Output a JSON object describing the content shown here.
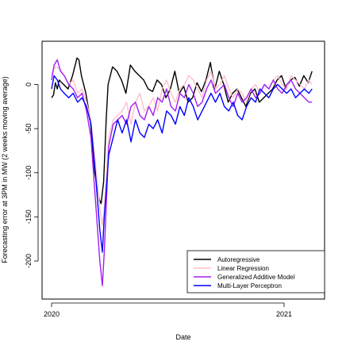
{
  "chart_data": {
    "type": "line",
    "title": "",
    "xlabel": "Date",
    "ylabel": "Forecasting error at 3PM in MW (2 weeks moving average)",
    "x_ticks": [
      "2020",
      "2021"
    ],
    "y_ticks": [
      "0",
      "-50",
      "-100",
      "-150",
      "-200"
    ],
    "y_tick_values": [
      0,
      -50,
      -100,
      -150,
      -200
    ],
    "xlim": [
      "2020-01-01",
      "2021-02-20"
    ],
    "ylim": [
      -235,
      40
    ],
    "grid": false,
    "legend_position": "bottom-right",
    "series": [
      {
        "name": "Autoregressive",
        "color": "#000000",
        "x": [
          "2020-01-01",
          "2020-01-04",
          "2020-01-07",
          "2020-01-10",
          "2020-01-13",
          "2020-01-20",
          "2020-01-27",
          "2020-02-03",
          "2020-02-10",
          "2020-02-13",
          "2020-02-17",
          "2020-02-24",
          "2020-03-02",
          "2020-03-09",
          "2020-03-16",
          "2020-03-19",
          "2020-03-23",
          "2020-03-27",
          "2020-03-30",
          "2020-04-06",
          "2020-04-13",
          "2020-04-20",
          "2020-04-27",
          "2020-05-04",
          "2020-05-11",
          "2020-05-18",
          "2020-05-25",
          "2020-06-01",
          "2020-06-08",
          "2020-06-15",
          "2020-06-22",
          "2020-06-29",
          "2020-07-06",
          "2020-07-13",
          "2020-07-20",
          "2020-07-27",
          "2020-08-03",
          "2020-08-10",
          "2020-08-17",
          "2020-08-24",
          "2020-08-31",
          "2020-09-07",
          "2020-09-14",
          "2020-09-21",
          "2020-09-28",
          "2020-10-05",
          "2020-10-12",
          "2020-10-19",
          "2020-10-26",
          "2020-11-02",
          "2020-11-09",
          "2020-11-16",
          "2020-11-23",
          "2020-11-30",
          "2020-12-07",
          "2020-12-14",
          "2020-12-21",
          "2020-12-28",
          "2021-01-04",
          "2021-01-11",
          "2021-01-18",
          "2021-01-25",
          "2021-02-01",
          "2021-02-08",
          "2021-02-14"
        ],
        "y": [
          -15,
          -12,
          2,
          -5,
          5,
          0,
          -5,
          10,
          30,
          28,
          10,
          -10,
          -40,
          -100,
          -130,
          -135,
          -110,
          -40,
          0,
          20,
          15,
          5,
          -10,
          22,
          15,
          10,
          5,
          -5,
          -8,
          5,
          0,
          -15,
          -5,
          15,
          -10,
          -2,
          -20,
          -15,
          2,
          -8,
          5,
          25,
          -5,
          15,
          0,
          -20,
          -10,
          -5,
          -15,
          -25,
          -10,
          -5,
          -20,
          -15,
          -10,
          -5,
          5,
          10,
          -5,
          5,
          8,
          -2,
          10,
          2,
          15
        ]
      },
      {
        "name": "Linear Regression",
        "color": "#ffc0cb",
        "x": [
          "2020-01-01",
          "2020-01-07",
          "2020-01-14",
          "2020-01-21",
          "2020-01-28",
          "2020-02-04",
          "2020-02-11",
          "2020-02-18",
          "2020-02-25",
          "2020-03-03",
          "2020-03-10",
          "2020-03-17",
          "2020-03-21",
          "2020-03-24",
          "2020-03-31",
          "2020-04-07",
          "2020-04-14",
          "2020-04-21",
          "2020-04-28",
          "2020-05-05",
          "2020-05-12",
          "2020-05-19",
          "2020-05-26",
          "2020-06-02",
          "2020-06-09",
          "2020-06-16",
          "2020-06-23",
          "2020-06-30",
          "2020-07-07",
          "2020-07-14",
          "2020-07-21",
          "2020-07-28",
          "2020-08-04",
          "2020-08-11",
          "2020-08-18",
          "2020-08-25",
          "2020-09-01",
          "2020-09-08",
          "2020-09-15",
          "2020-09-22",
          "2020-09-29",
          "2020-10-06",
          "2020-10-13",
          "2020-10-20",
          "2020-10-27",
          "2020-11-03",
          "2020-11-10",
          "2020-11-17",
          "2020-11-24",
          "2020-12-01",
          "2020-12-08",
          "2020-12-15",
          "2020-12-22",
          "2020-12-29",
          "2021-01-05",
          "2021-01-12",
          "2021-01-19",
          "2021-01-26",
          "2021-02-02",
          "2021-02-09",
          "2021-02-14"
        ],
        "y": [
          12,
          20,
          18,
          10,
          0,
          5,
          -10,
          -5,
          -20,
          -40,
          -90,
          -140,
          -160,
          -140,
          -60,
          -40,
          -35,
          -30,
          -20,
          -45,
          -20,
          -10,
          -30,
          -25,
          -15,
          -30,
          -5,
          5,
          -10,
          -20,
          -5,
          0,
          10,
          5,
          -5,
          -15,
          5,
          15,
          -5,
          0,
          10,
          -5,
          -15,
          -5,
          -10,
          -20,
          -5,
          0,
          -10,
          0,
          -5,
          5,
          10,
          0,
          -5,
          10,
          5,
          0,
          -5,
          5,
          0
        ]
      },
      {
        "name": "Generalized Additive Model",
        "color": "#a020f0",
        "x": [
          "2020-01-01",
          "2020-01-05",
          "2020-01-10",
          "2020-01-15",
          "2020-01-21",
          "2020-01-28",
          "2020-02-04",
          "2020-02-11",
          "2020-02-18",
          "2020-02-25",
          "2020-03-03",
          "2020-03-10",
          "2020-03-17",
          "2020-03-21",
          "2020-03-24",
          "2020-03-31",
          "2020-04-07",
          "2020-04-14",
          "2020-04-21",
          "2020-04-28",
          "2020-05-05",
          "2020-05-12",
          "2020-05-19",
          "2020-05-26",
          "2020-06-02",
          "2020-06-09",
          "2020-06-16",
          "2020-06-23",
          "2020-06-30",
          "2020-07-07",
          "2020-07-14",
          "2020-07-21",
          "2020-07-28",
          "2020-08-04",
          "2020-08-11",
          "2020-08-18",
          "2020-08-25",
          "2020-09-01",
          "2020-09-08",
          "2020-09-15",
          "2020-09-22",
          "2020-09-29",
          "2020-10-06",
          "2020-10-13",
          "2020-10-20",
          "2020-10-27",
          "2020-11-03",
          "2020-11-10",
          "2020-11-17",
          "2020-11-24",
          "2020-12-01",
          "2020-12-08",
          "2020-12-15",
          "2020-12-22",
          "2020-12-29",
          "2021-01-05",
          "2021-01-12",
          "2021-01-19",
          "2021-01-26",
          "2021-02-02",
          "2021-02-09",
          "2021-02-14"
        ],
        "y": [
          5,
          22,
          28,
          15,
          10,
          0,
          -5,
          -15,
          -10,
          -30,
          -60,
          -130,
          -200,
          -228,
          -190,
          -70,
          -45,
          -40,
          -35,
          -45,
          -25,
          -20,
          -35,
          -40,
          -25,
          -35,
          -15,
          -20,
          -5,
          -25,
          -30,
          -10,
          -15,
          0,
          -10,
          -25,
          -20,
          -5,
          5,
          -10,
          -5,
          0,
          -15,
          -25,
          -10,
          -20,
          -15,
          -5,
          -15,
          -10,
          0,
          -5,
          5,
          -5,
          -10,
          0,
          5,
          -5,
          -10,
          -15,
          -20,
          -20
        ]
      },
      {
        "name": "Multi-Layer Perceptron",
        "color": "#0000ff",
        "x": [
          "2020-01-01",
          "2020-01-05",
          "2020-01-10",
          "2020-01-15",
          "2020-01-21",
          "2020-01-28",
          "2020-02-04",
          "2020-02-11",
          "2020-02-18",
          "2020-02-25",
          "2020-03-03",
          "2020-03-10",
          "2020-03-17",
          "2020-03-21",
          "2020-03-24",
          "2020-03-31",
          "2020-04-07",
          "2020-04-14",
          "2020-04-21",
          "2020-04-28",
          "2020-05-05",
          "2020-05-12",
          "2020-05-19",
          "2020-05-26",
          "2020-06-02",
          "2020-06-09",
          "2020-06-16",
          "2020-06-23",
          "2020-06-30",
          "2020-07-07",
          "2020-07-14",
          "2020-07-21",
          "2020-07-28",
          "2020-08-04",
          "2020-08-11",
          "2020-08-18",
          "2020-08-25",
          "2020-09-01",
          "2020-09-08",
          "2020-09-15",
          "2020-09-22",
          "2020-09-29",
          "2020-10-06",
          "2020-10-13",
          "2020-10-20",
          "2020-10-27",
          "2020-11-03",
          "2020-11-10",
          "2020-11-17",
          "2020-11-24",
          "2020-12-01",
          "2020-12-08",
          "2020-12-15",
          "2020-12-22",
          "2020-12-29",
          "2021-01-05",
          "2021-01-12",
          "2021-01-19",
          "2021-01-26",
          "2021-02-02",
          "2021-02-09",
          "2021-02-14"
        ],
        "y": [
          -5,
          10,
          5,
          -5,
          -10,
          -15,
          -10,
          -20,
          -15,
          -25,
          -45,
          -100,
          -165,
          -190,
          -150,
          -80,
          -60,
          -40,
          -55,
          -40,
          -65,
          -40,
          -55,
          -60,
          -45,
          -50,
          -40,
          -55,
          -30,
          -35,
          -45,
          -25,
          -35,
          -15,
          -25,
          -40,
          -30,
          -20,
          -10,
          -20,
          -10,
          -25,
          -30,
          -20,
          -35,
          -40,
          -25,
          -15,
          -20,
          -5,
          -10,
          -15,
          -5,
          0,
          -5,
          -10,
          -5,
          -15,
          -10,
          -5,
          -10,
          -5
        ]
      }
    ]
  }
}
